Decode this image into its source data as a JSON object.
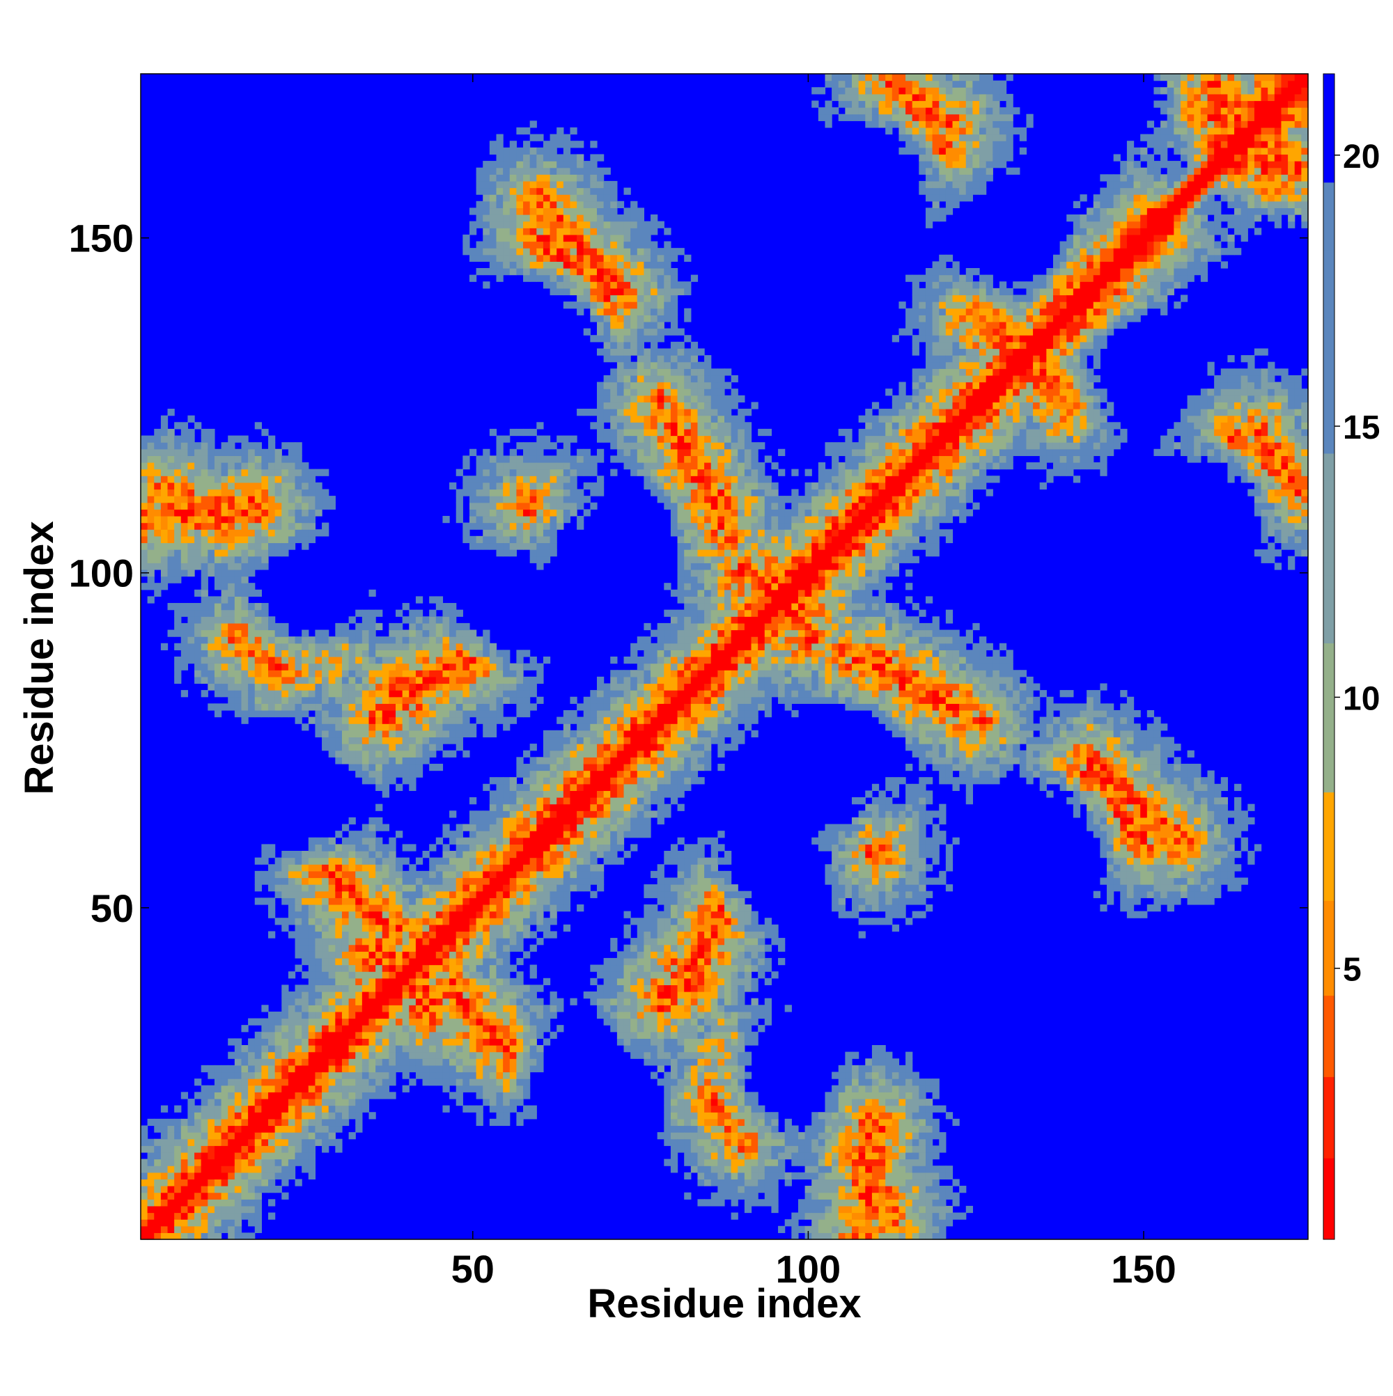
{
  "chart_data": {
    "type": "heatmap",
    "title": "",
    "xlabel": "Residue index",
    "ylabel": "Residue index",
    "x_range": [
      1,
      174
    ],
    "y_range": [
      1,
      174
    ],
    "xticks": [
      50,
      100,
      150
    ],
    "yticks": [
      50,
      100,
      150
    ],
    "color_scale": {
      "range": [
        0,
        21.5
      ],
      "ticks": [
        5,
        10,
        15,
        20
      ],
      "palette": [
        "#ff0000",
        "#ff2200",
        "#ff5a00",
        "#ff8c00",
        "#ffa600",
        "#94b08a",
        "#7f9fa6",
        "#5b86bd",
        "#0000ff"
      ]
    },
    "diagonal": "distance 0 along the main diagonal, increasing away from it",
    "contact_segments": [
      {
        "x1": 18,
        "y1": 90,
        "x2": 28,
        "y2": 88
      },
      {
        "x1": 38,
        "y1": 82,
        "x2": 50,
        "y2": 87
      },
      {
        "x1": 30,
        "y1": 53,
        "x2": 38,
        "y2": 47
      },
      {
        "x1": 37,
        "y1": 44,
        "x2": 44,
        "y2": 34
      },
      {
        "x1": 52,
        "y1": 32,
        "x2": 56,
        "y2": 28
      },
      {
        "x1": 78,
        "y1": 36,
        "x2": 85,
        "y2": 45
      },
      {
        "x1": 80,
        "y1": 122,
        "x2": 87,
        "y2": 110
      },
      {
        "x1": 106,
        "y1": 88,
        "x2": 125,
        "y2": 78
      },
      {
        "x1": 114,
        "y1": 172,
        "x2": 121,
        "y2": 167
      },
      {
        "x1": 160,
        "y1": 174,
        "x2": 170,
        "y2": 158
      },
      {
        "x1": 164,
        "y1": 120,
        "x2": 174,
        "y2": 112
      },
      {
        "x1": 0,
        "y1": 108,
        "x2": 18,
        "y2": 110
      },
      {
        "x1": 58,
        "y1": 110,
        "x2": 66,
        "y2": 108
      },
      {
        "x1": 60,
        "y1": 155,
        "x2": 72,
        "y2": 142
      },
      {
        "x1": 90,
        "y1": 100,
        "x2": 100,
        "y2": 95
      },
      {
        "x1": 140,
        "y1": 70,
        "x2": 150,
        "y2": 60
      },
      {
        "x1": 108,
        "y1": 14,
        "x2": 112,
        "y2": 4
      },
      {
        "x1": 86,
        "y1": 22,
        "x2": 90,
        "y2": 16
      },
      {
        "x1": 125,
        "y1": 138,
        "x2": 135,
        "y2": 130
      }
    ],
    "background_zones": [
      {
        "x": 20,
        "y": 135,
        "r": 12
      },
      {
        "x": 60,
        "y": 135,
        "r": 12
      },
      {
        "x": 100,
        "y": 135,
        "r": 13
      },
      {
        "x": 150,
        "y": 130,
        "r": 10
      },
      {
        "x": 25,
        "y": 95,
        "r": 10
      },
      {
        "x": 55,
        "y": 95,
        "r": 10
      },
      {
        "x": 140,
        "y": 95,
        "r": 13
      },
      {
        "x": 20,
        "y": 70,
        "r": 10
      },
      {
        "x": 105,
        "y": 70,
        "r": 12
      },
      {
        "x": 65,
        "y": 25,
        "r": 10
      },
      {
        "x": 135,
        "y": 30,
        "r": 17
      },
      {
        "x": 165,
        "y": 30,
        "r": 8
      },
      {
        "x": 110,
        "y": 160,
        "r": 10
      },
      {
        "x": 160,
        "y": 155,
        "r": 6
      },
      {
        "x": 40,
        "y": 160,
        "r": 12
      },
      {
        "x": 150,
        "y": 170,
        "r": 6
      }
    ]
  }
}
